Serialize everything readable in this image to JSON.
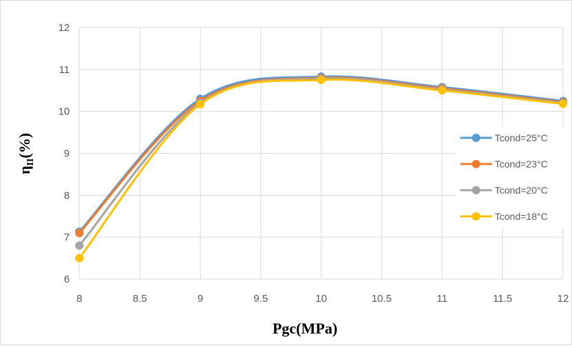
{
  "chart_data": {
    "type": "line",
    "title": "",
    "xlabel": "Pgc(MPa)",
    "ylabel_main": "η",
    "ylabel_sub": "II",
    "ylabel_suffix": "(%)",
    "xlim": [
      8,
      12
    ],
    "ylim": [
      6,
      12
    ],
    "x_ticks": [
      "8",
      "8.5",
      "9",
      "9.5",
      "10",
      "10.5",
      "11",
      "11.5",
      "12"
    ],
    "y_ticks": [
      "6",
      "7",
      "8",
      "9",
      "10",
      "11",
      "12"
    ],
    "grid": true,
    "legend_position": "right",
    "x": [
      8,
      9,
      10,
      11,
      12
    ],
    "series": [
      {
        "name": "Tcond=25°C",
        "color": "#5b9bd5",
        "values": [
          7.13,
          10.3,
          10.83,
          10.58,
          10.25
        ]
      },
      {
        "name": "Tcond=23°C",
        "color": "#ed7d31",
        "values": [
          7.1,
          10.25,
          10.8,
          10.55,
          10.22
        ]
      },
      {
        "name": "Tcond=20°C",
        "color": "#a5a5a5",
        "values": [
          6.8,
          10.2,
          10.78,
          10.52,
          10.2
        ]
      },
      {
        "name": "Tcond=18°C",
        "color": "#ffc000",
        "values": [
          6.5,
          10.17,
          10.75,
          10.5,
          10.18
        ]
      }
    ]
  }
}
